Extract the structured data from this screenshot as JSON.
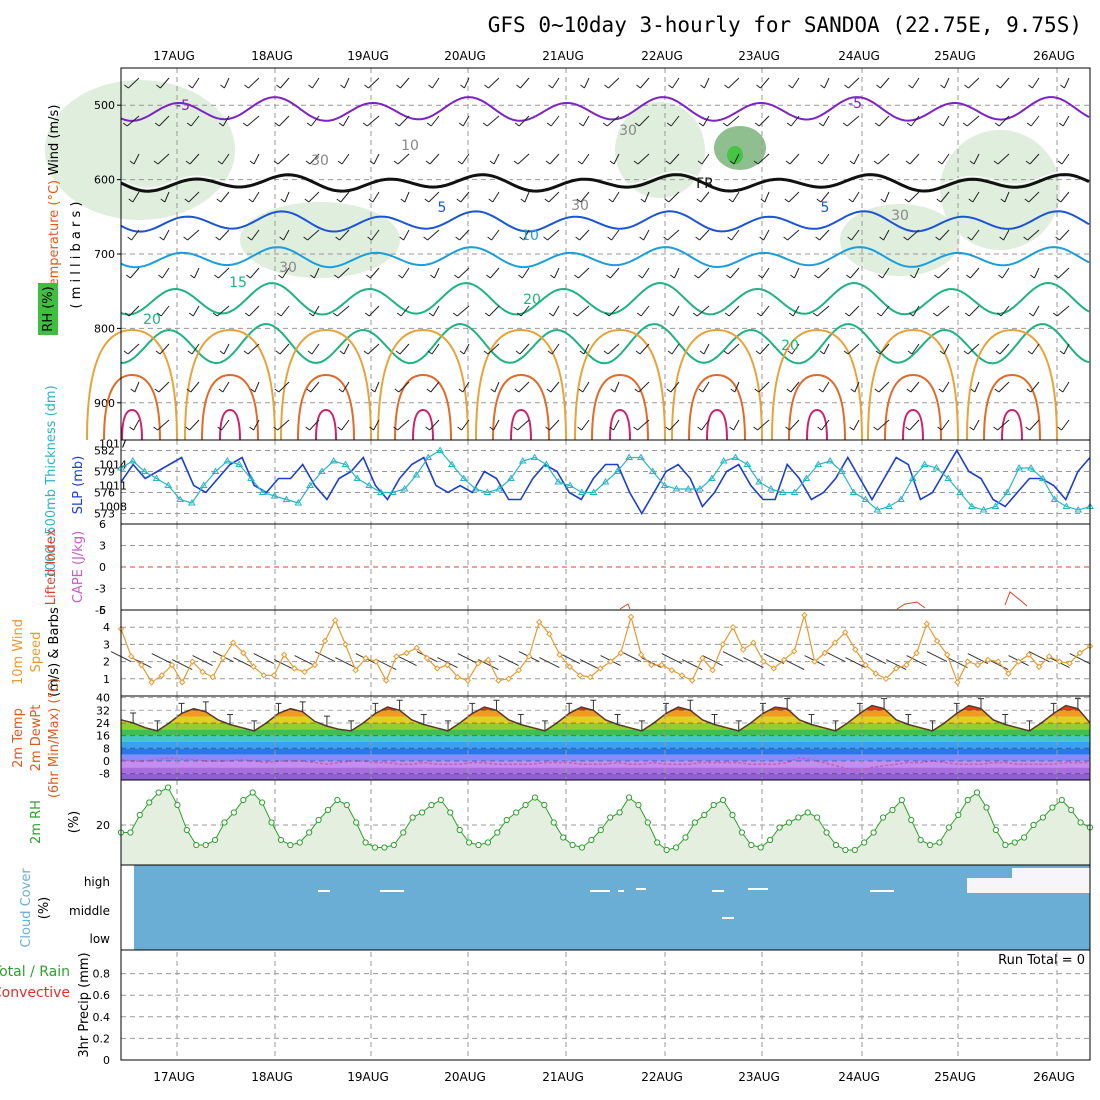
{
  "title": "GFS 0~10day 3-hourly for SANDOA (22.75E, 9.75S)",
  "dates": [
    "17AUG",
    "18AUG",
    "19AUG",
    "20AUG",
    "21AUG",
    "22AUG",
    "23AUG",
    "24AUG",
    "25AUG",
    "26AUG"
  ],
  "colors": {
    "rh": "#2fa12f",
    "temp": "#e05a20",
    "tempLabel": "#7e22c6",
    "wind": "#000000",
    "thickness": "#1c3fd1",
    "slp": "#2bb5c4",
    "cape": "#c75cc7",
    "lifted": "#e0432a",
    "wind10": "#e89a30",
    "cloud": "#6aaed6",
    "precipTotal": "#2fa12f",
    "precipConv": "#e0302a"
  },
  "labels": {
    "upper": {
      "wind": "Wind (m/s)",
      "temperature": "Temperature (°C)",
      "rh": "RH (%)",
      "millibars": "( m i l l i b a r s )"
    },
    "thick": {
      "thickness": "1000~500mb Thickness (dm)",
      "slp": "SLP (mb)"
    },
    "cape": {
      "lifted": "Lifted Index",
      "cape": "CAPE (J/kg)"
    },
    "wind10": {
      "label1": "10m Wind",
      "label2": "Speed",
      "label3": "(m/s) & Barbs"
    },
    "temp2m": {
      "l1": "2m Temp",
      "l2": "2m DewPt",
      "l3": "(6hr Min/Max) (°C)"
    },
    "rh2m": {
      "l1": "2m RH",
      "l2": "(%)"
    },
    "cloud": {
      "l1": "Cloud Cover",
      "l2": "(%)"
    },
    "precip": {
      "l1": "Total / Rain",
      "l2": "Convective",
      "l3": "3hr Precip (mm)",
      "runTotal": "Run Total = 0"
    }
  },
  "chart_data": [
    {
      "panel": "upper-air",
      "type": "heatmap",
      "ylabel": "millibars",
      "yticks": [
        500,
        600,
        700,
        800,
        900
      ],
      "ylim": [
        450,
        950
      ],
      "contour_labels": [
        "-5",
        "-5",
        "10",
        "30",
        "30",
        "30",
        "30",
        "30",
        "FR",
        "5",
        "5",
        "10",
        "15",
        "20",
        "20",
        "20"
      ]
    },
    {
      "panel": "thickness-slp",
      "type": "line",
      "thickness_ticks": [
        573,
        576,
        579,
        582
      ],
      "slp_ticks": [
        1008,
        1011,
        1014,
        1017
      ],
      "series": [
        {
          "name": "1000~500mb Thickness (dm)",
          "values": [
            577.5,
            580,
            578,
            579,
            580,
            581,
            577,
            576,
            578,
            580,
            581,
            577,
            576,
            578,
            578,
            580,
            577,
            575,
            578,
            579,
            581,
            577,
            575,
            578,
            580,
            581,
            577,
            576,
            577,
            576,
            579,
            578,
            575,
            575,
            578,
            580,
            579,
            576,
            575,
            578,
            580,
            580,
            576,
            573,
            576,
            579,
            580,
            578,
            574,
            576,
            579,
            580,
            577,
            575,
            575,
            580,
            578,
            575,
            576,
            578,
            581,
            578,
            575,
            578,
            581,
            580,
            575,
            576,
            579,
            582,
            579,
            578,
            575,
            574,
            576,
            578,
            578,
            577,
            575,
            579,
            581
          ]
        },
        {
          "name": "SLP (mb)",
          "values": [
            1013.5,
            1014.5,
            1013,
            1012,
            1011,
            1009,
            1008.5,
            1011,
            1013,
            1014.5,
            1014,
            1012,
            1010,
            1009.5,
            1009,
            1008.5,
            1011,
            1013,
            1014.5,
            1014,
            1012,
            1011,
            1010,
            1010,
            1010.5,
            1012.5,
            1015,
            1016,
            1014,
            1012,
            1010.5,
            1010,
            1010.5,
            1012,
            1014.5,
            1015,
            1014,
            1011.5,
            1011,
            1010,
            1010,
            1011.5,
            1013,
            1015,
            1015,
            1013,
            1011,
            1010.5,
            1010.5,
            1010.5,
            1012,
            1014.5,
            1015,
            1014,
            1011.5,
            1010.5,
            1010,
            1010,
            1012,
            1014,
            1014.5,
            1013,
            1010,
            1009,
            1007.5,
            1008,
            1009,
            1012,
            1014,
            1013.5,
            1012,
            1010,
            1008,
            1007.5,
            1008,
            1010,
            1013.5,
            1013.5,
            1012,
            1009,
            1008,
            1007.5,
            1008
          ]
        }
      ]
    },
    {
      "panel": "cape-lifted",
      "type": "line",
      "lifted_ticks": [
        6,
        3,
        0,
        -3,
        -6
      ],
      "cape_ticks": [
        5
      ],
      "series": [
        {
          "name": "Lifted Index",
          "values": []
        },
        {
          "name": "CAPE (J/kg)",
          "values": []
        }
      ]
    },
    {
      "panel": "wind10m",
      "type": "line",
      "yticks": [
        1,
        2,
        3,
        4
      ],
      "ylim": [
        0,
        5
      ],
      "series": [
        {
          "name": "10m Wind Speed (m/s)",
          "values": [
            3.9,
            2.3,
            1.8,
            0.8,
            1.2,
            1.8,
            0.8,
            2.0,
            1.4,
            1.1,
            2.2,
            3.1,
            2.5,
            1.7,
            1.2,
            1.2,
            2.4,
            1.6,
            1.4,
            1.8,
            3.2,
            4.4,
            3.0,
            1.5,
            2.2,
            2.0,
            0.9,
            2.3,
            2.5,
            2.8,
            2.2,
            1.6,
            1.8,
            1.1,
            0.9,
            1.9,
            2.1,
            0.9,
            1.0,
            1.5,
            2.3,
            4.3,
            3.6,
            2.4,
            1.7,
            1.2,
            1.1,
            1.6,
            2.0,
            2.5,
            4.6,
            2.4,
            1.8,
            1.8,
            1.5,
            1.2,
            0.9,
            2.2,
            1.5,
            3.0,
            4.0,
            2.7,
            3.1,
            2.0,
            1.6,
            2.1,
            2.6,
            4.7,
            2.0,
            2.5,
            3.1,
            3.7,
            2.7,
            1.8,
            1.3,
            1.0,
            1.6,
            1.8,
            2.5,
            4.2,
            3.2,
            2.4,
            0.8,
            2.0,
            1.8,
            2.1,
            2.0,
            1.3,
            2.0,
            2.4,
            1.7,
            2.3,
            2.0,
            1.9,
            2.5,
            2.9
          ]
        }
      ]
    },
    {
      "panel": "temp-dewpt-2m",
      "type": "area",
      "yticks": [
        -8,
        0,
        8,
        16,
        24,
        32,
        40
      ],
      "ylim": [
        -12,
        41
      ],
      "series": [
        {
          "name": "2m Temp",
          "values": [
            26,
            24,
            21,
            19,
            24,
            30,
            33,
            31,
            26,
            23,
            21,
            19,
            24,
            30,
            33,
            31,
            25,
            22,
            20,
            19,
            24,
            30,
            34,
            32,
            26,
            23,
            21,
            19,
            24,
            30,
            34,
            32,
            26,
            23,
            21,
            19,
            24,
            30,
            34,
            32,
            26,
            23,
            21,
            19,
            24,
            30,
            34,
            32,
            26,
            23,
            21,
            19,
            24,
            30,
            34,
            33,
            26,
            23,
            21,
            19,
            24,
            30,
            35,
            33,
            26,
            23,
            21,
            19,
            24,
            30,
            35,
            33,
            26,
            23,
            21,
            19,
            24,
            30,
            35,
            33,
            24
          ]
        },
        {
          "name": "2m DewPt",
          "values": [
            1,
            0,
            0,
            1,
            2,
            1,
            1,
            0,
            0,
            0,
            1,
            0,
            -1,
            0,
            0,
            0,
            -1,
            -2,
            -1,
            0,
            0,
            -1,
            -1,
            -2,
            -2,
            -1,
            -2,
            -2,
            -2,
            -1,
            -1,
            -2,
            -2,
            -2,
            -2,
            -1,
            -1,
            -1,
            -2,
            -2,
            -2,
            -1,
            -2,
            -2,
            -1,
            -2,
            -2,
            -2,
            -1,
            -1,
            -1,
            -1,
            -2,
            -2,
            -2,
            -1,
            2,
            1,
            -1,
            -3,
            -5,
            -6,
            -4,
            -3,
            -2,
            -1,
            -1,
            0,
            -1,
            -2,
            -2,
            -2,
            -1,
            -1,
            -2,
            -2,
            -2,
            -2,
            -1,
            -1,
            -1
          ]
        }
      ]
    },
    {
      "panel": "rh-2m",
      "type": "area",
      "yticks": [
        20
      ],
      "ylim": [
        4,
        38
      ],
      "series": [
        {
          "name": "2m RH (%)",
          "values": [
            17,
            17,
            24,
            29,
            33,
            35,
            28,
            18,
            12,
            12,
            14,
            21,
            25,
            30,
            33,
            29,
            21,
            14,
            12,
            13,
            17,
            22,
            26,
            30,
            28,
            21,
            13,
            11,
            11,
            12,
            17,
            23,
            25,
            28,
            30,
            25,
            18,
            13,
            12,
            13,
            17,
            22,
            25,
            28,
            31,
            28,
            21,
            15,
            12,
            11,
            14,
            18,
            23,
            25,
            31,
            28,
            21,
            13,
            10,
            11,
            15,
            21,
            24,
            28,
            30,
            24,
            17,
            12,
            11,
            14,
            19,
            21,
            23,
            25,
            23,
            17,
            12,
            10,
            10,
            13,
            17,
            23,
            26,
            30,
            22,
            14,
            12,
            13,
            19,
            24,
            30,
            33,
            27,
            18,
            12,
            13,
            15,
            20,
            23,
            27,
            30,
            26,
            21,
            19
          ]
        }
      ]
    },
    {
      "panel": "cloud-cover",
      "type": "bar",
      "categories": [
        "high",
        "middle",
        "low"
      ]
    },
    {
      "panel": "precip-3hr",
      "type": "bar",
      "yticks": [
        0,
        0.2,
        0.4,
        0.6,
        0.8
      ],
      "ylim": [
        0,
        1
      ],
      "values": []
    }
  ]
}
